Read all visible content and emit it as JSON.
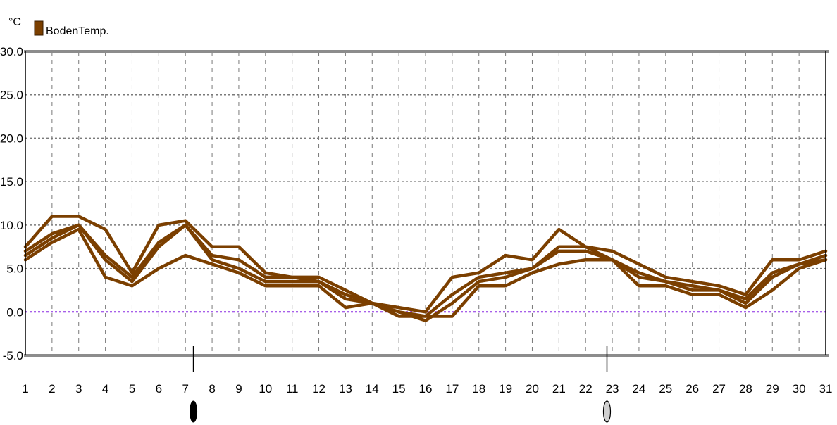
{
  "chart_data": {
    "type": "line",
    "unit": "°C",
    "ylim": [
      -5,
      30
    ],
    "yticks": [
      "30.0",
      "25.0",
      "20.0",
      "15.0",
      "10.0",
      "5.0",
      "0.0",
      "-5.0"
    ],
    "ytick_values": [
      30,
      25,
      20,
      15,
      10,
      5,
      0,
      -5
    ],
    "categories": [
      "1",
      "2",
      "3",
      "4",
      "5",
      "6",
      "7",
      "8",
      "9",
      "10",
      "11",
      "12",
      "13",
      "14",
      "15",
      "16",
      "17",
      "18",
      "19",
      "20",
      "21",
      "22",
      "23",
      "24",
      "25",
      "26",
      "27",
      "28",
      "29",
      "30",
      "31"
    ],
    "x": [
      1,
      2,
      3,
      4,
      5,
      6,
      7,
      8,
      9,
      10,
      11,
      12,
      13,
      14,
      15,
      16,
      17,
      18,
      19,
      20,
      21,
      22,
      23,
      24,
      25,
      26,
      27,
      28,
      29,
      30,
      31
    ],
    "grid": true,
    "legend": {
      "position": "top-left",
      "entries": [
        {
          "label": "BodenTemp.",
          "color": "#7b3f00"
        }
      ]
    },
    "zero_line_color": "#8a2be2",
    "series_color": "#7b3f00",
    "series": [
      {
        "values": [
          7.5,
          11.0,
          11.0,
          9.5,
          4.5,
          10.0,
          10.5,
          7.5,
          7.5,
          4.5,
          4.0,
          4.0,
          2.5,
          1.0,
          0.5,
          0.0,
          4.0,
          4.5,
          6.5,
          6.0,
          9.5,
          7.5,
          7.0,
          5.5,
          4.0,
          3.5,
          3.0,
          2.0,
          6.0,
          6.0,
          7.0
        ]
      },
      {
        "values": [
          7.0,
          9.0,
          10.0,
          6.5,
          4.0,
          8.0,
          10.0,
          6.5,
          6.0,
          4.0,
          4.0,
          3.5,
          2.0,
          1.0,
          0.0,
          -0.5,
          2.0,
          4.0,
          4.5,
          5.0,
          7.5,
          7.5,
          6.0,
          4.5,
          3.5,
          3.0,
          2.5,
          1.5,
          4.5,
          5.5,
          6.5
        ]
      },
      {
        "values": [
          6.5,
          8.5,
          10.0,
          6.0,
          3.5,
          7.5,
          10.0,
          6.0,
          5.0,
          3.5,
          3.5,
          3.5,
          1.5,
          1.0,
          0.0,
          -1.0,
          1.0,
          3.5,
          4.0,
          5.0,
          7.0,
          7.0,
          6.0,
          4.0,
          3.5,
          2.5,
          2.5,
          1.0,
          4.0,
          5.5,
          6.0
        ]
      },
      {
        "values": [
          6.0,
          8.0,
          9.5,
          4.0,
          3.0,
          5.0,
          6.5,
          5.5,
          4.5,
          3.0,
          3.0,
          3.0,
          0.5,
          1.0,
          -0.5,
          -0.5,
          -0.5,
          3.0,
          3.0,
          4.5,
          5.5,
          6.0,
          6.0,
          3.0,
          3.0,
          2.0,
          2.0,
          0.5,
          2.5,
          5.0,
          6.0
        ]
      }
    ],
    "moon_phases": [
      {
        "x": 7.3,
        "phase": "new-moon"
      },
      {
        "x": 22.8,
        "phase": "full-moon"
      }
    ]
  }
}
